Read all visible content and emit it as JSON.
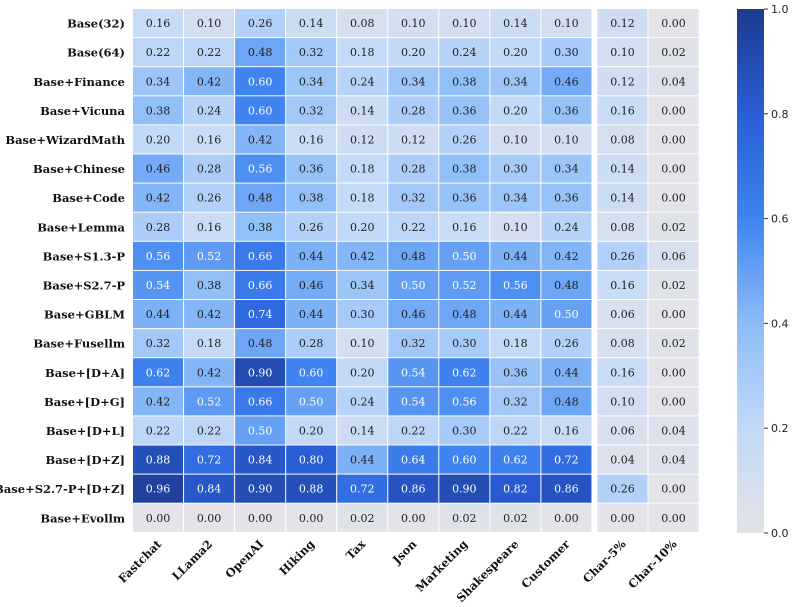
{
  "chart_data": {
    "type": "heatmap",
    "title": "",
    "xlabel": "",
    "ylabel": "",
    "columns": [
      "Fastchat",
      "LLama2",
      "OpenAI",
      "Hiking",
      "Tax",
      "Json",
      "Marketing",
      "Shakespeare",
      "Customer",
      "Char-5%",
      "Char-10%"
    ],
    "rows": [
      "Base(32)",
      "Base(64)",
      "Base+Finance",
      "Base+Vicuna",
      "Base+WizardMath",
      "Base+Chinese",
      "Base+Code",
      "Base+Lemma",
      "Base+S1.3-P",
      "Base+S2.7-P",
      "Base+GBLM",
      "Base+Fusellm",
      "Base+[D+A]",
      "Base+[D+G]",
      "Base+[D+L]",
      "Base+[D+Z]",
      "Base+S2.7-P+[D+Z]",
      "Base+Evollm"
    ],
    "values": [
      [
        0.16,
        0.1,
        0.26,
        0.14,
        0.08,
        0.1,
        0.1,
        0.14,
        0.1,
        0.12,
        0.0
      ],
      [
        0.22,
        0.22,
        0.48,
        0.32,
        0.18,
        0.2,
        0.24,
        0.2,
        0.3,
        0.1,
        0.02
      ],
      [
        0.34,
        0.42,
        0.6,
        0.34,
        0.24,
        0.34,
        0.38,
        0.34,
        0.46,
        0.12,
        0.04
      ],
      [
        0.38,
        0.24,
        0.6,
        0.32,
        0.14,
        0.28,
        0.36,
        0.2,
        0.36,
        0.16,
        0.0
      ],
      [
        0.2,
        0.16,
        0.42,
        0.16,
        0.12,
        0.12,
        0.26,
        0.1,
        0.1,
        0.08,
        0.0
      ],
      [
        0.46,
        0.28,
        0.56,
        0.36,
        0.18,
        0.28,
        0.38,
        0.3,
        0.34,
        0.14,
        0.0
      ],
      [
        0.42,
        0.26,
        0.48,
        0.38,
        0.18,
        0.32,
        0.36,
        0.34,
        0.36,
        0.14,
        0.0
      ],
      [
        0.28,
        0.16,
        0.38,
        0.26,
        0.2,
        0.22,
        0.16,
        0.1,
        0.24,
        0.08,
        0.02
      ],
      [
        0.56,
        0.52,
        0.66,
        0.44,
        0.42,
        0.48,
        0.5,
        0.44,
        0.42,
        0.26,
        0.06
      ],
      [
        0.54,
        0.38,
        0.66,
        0.46,
        0.34,
        0.5,
        0.52,
        0.56,
        0.48,
        0.16,
        0.02
      ],
      [
        0.44,
        0.42,
        0.74,
        0.44,
        0.3,
        0.46,
        0.48,
        0.44,
        0.5,
        0.06,
        0.0
      ],
      [
        0.32,
        0.18,
        0.48,
        0.28,
        0.1,
        0.32,
        0.3,
        0.18,
        0.26,
        0.08,
        0.02
      ],
      [
        0.62,
        0.42,
        0.9,
        0.6,
        0.2,
        0.54,
        0.62,
        0.36,
        0.44,
        0.16,
        0.0
      ],
      [
        0.42,
        0.52,
        0.66,
        0.5,
        0.24,
        0.54,
        0.56,
        0.32,
        0.48,
        0.1,
        0.0
      ],
      [
        0.22,
        0.22,
        0.5,
        0.2,
        0.14,
        0.22,
        0.3,
        0.22,
        0.16,
        0.06,
        0.04
      ],
      [
        0.88,
        0.72,
        0.84,
        0.8,
        0.44,
        0.64,
        0.6,
        0.62,
        0.72,
        0.04,
        0.04
      ],
      [
        0.96,
        0.84,
        0.9,
        0.88,
        0.72,
        0.86,
        0.9,
        0.82,
        0.86,
        0.26,
        0.0
      ],
      [
        0.0,
        0.0,
        0.0,
        0.0,
        0.02,
        0.0,
        0.02,
        0.02,
        0.0,
        0.0,
        0.0
      ]
    ],
    "value_format": "2dp",
    "column_groups": [
      9,
      2
    ],
    "colorbar": {
      "range": [
        0.0,
        1.0
      ],
      "ticks": [
        "0.0",
        "0.2",
        "0.4",
        "0.6",
        "0.8",
        "1.0"
      ],
      "tick_values": [
        0.0,
        0.2,
        0.4,
        0.6,
        0.8,
        1.0
      ],
      "placement": "right"
    },
    "colormap": {
      "stops": [
        {
          "v": 0.0,
          "color": "#e3e3e8"
        },
        {
          "v": 0.2,
          "color": "#c2d9f8"
        },
        {
          "v": 0.4,
          "color": "#8cbcf8"
        },
        {
          "v": 0.6,
          "color": "#3f84f0"
        },
        {
          "v": 0.8,
          "color": "#2a5ed7"
        },
        {
          "v": 1.0,
          "color": "#1d3a8e"
        }
      ]
    },
    "light_text_color": "#ffffff",
    "dark_text_color": "#222222"
  }
}
